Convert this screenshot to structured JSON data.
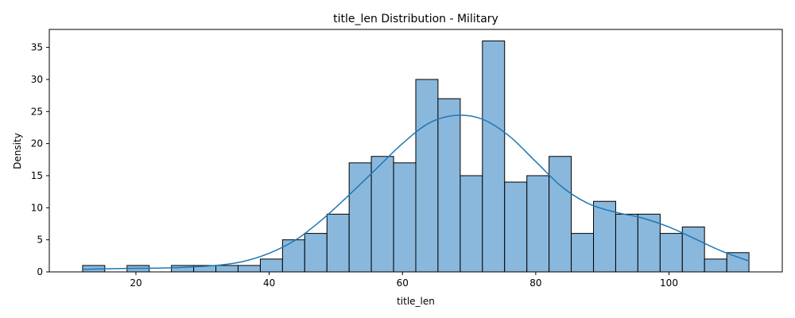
{
  "chart_data": {
    "type": "bar",
    "title": "title_len Distribution - Military",
    "xlabel": "title_len",
    "ylabel": "Density",
    "xlim": [
      7,
      117
    ],
    "ylim": [
      0,
      37.8
    ],
    "x_ticks": [
      20,
      40,
      60,
      80,
      100
    ],
    "y_ticks": [
      0,
      5,
      10,
      15,
      20,
      25,
      30,
      35
    ],
    "grid": false,
    "bar_color": "#8ab8dc",
    "bar_edge_color": "#000000",
    "kde_color": "#1f77b4",
    "bins": [
      {
        "start": 12.0,
        "end": 15.33,
        "value": 1
      },
      {
        "start": 15.33,
        "end": 18.67,
        "value": 0
      },
      {
        "start": 18.67,
        "end": 22.0,
        "value": 1
      },
      {
        "start": 22.0,
        "end": 25.33,
        "value": 0
      },
      {
        "start": 25.33,
        "end": 28.67,
        "value": 1
      },
      {
        "start": 28.67,
        "end": 32.0,
        "value": 1
      },
      {
        "start": 32.0,
        "end": 35.33,
        "value": 1
      },
      {
        "start": 35.33,
        "end": 38.67,
        "value": 1
      },
      {
        "start": 38.67,
        "end": 42.0,
        "value": 2
      },
      {
        "start": 42.0,
        "end": 45.33,
        "value": 5
      },
      {
        "start": 45.33,
        "end": 48.67,
        "value": 6
      },
      {
        "start": 48.67,
        "end": 52.0,
        "value": 9
      },
      {
        "start": 52.0,
        "end": 55.33,
        "value": 17
      },
      {
        "start": 55.33,
        "end": 58.67,
        "value": 18
      },
      {
        "start": 58.67,
        "end": 62.0,
        "value": 17
      },
      {
        "start": 62.0,
        "end": 65.33,
        "value": 30
      },
      {
        "start": 65.33,
        "end": 68.67,
        "value": 27
      },
      {
        "start": 68.67,
        "end": 72.0,
        "value": 15
      },
      {
        "start": 72.0,
        "end": 75.33,
        "value": 36
      },
      {
        "start": 75.33,
        "end": 78.67,
        "value": 14
      },
      {
        "start": 78.67,
        "end": 82.0,
        "value": 15
      },
      {
        "start": 82.0,
        "end": 85.33,
        "value": 18
      },
      {
        "start": 85.33,
        "end": 88.67,
        "value": 6
      },
      {
        "start": 88.67,
        "end": 92.0,
        "value": 11
      },
      {
        "start": 92.0,
        "end": 95.33,
        "value": 9
      },
      {
        "start": 95.33,
        "end": 98.67,
        "value": 9
      },
      {
        "start": 98.67,
        "end": 102.0,
        "value": 6
      },
      {
        "start": 102.0,
        "end": 105.33,
        "value": 7
      },
      {
        "start": 105.33,
        "end": 108.67,
        "value": 2
      },
      {
        "start": 108.67,
        "end": 112.0,
        "value": 3
      }
    ],
    "kde": {
      "x": [
        12,
        16,
        20,
        24,
        28,
        32,
        36,
        40,
        44,
        48,
        52,
        56,
        60,
        64,
        68,
        72,
        76,
        80,
        84,
        88,
        92,
        96,
        100,
        104,
        108,
        112
      ],
      "y": [
        0.4,
        0.5,
        0.55,
        0.6,
        0.75,
        1.0,
        1.6,
        2.9,
        5.0,
        8.2,
        12.0,
        16.0,
        20.0,
        23.2,
        24.4,
        23.8,
        21.2,
        17.2,
        13.2,
        10.6,
        9.3,
        8.4,
        7.0,
        5.1,
        3.2,
        1.7
      ]
    }
  }
}
